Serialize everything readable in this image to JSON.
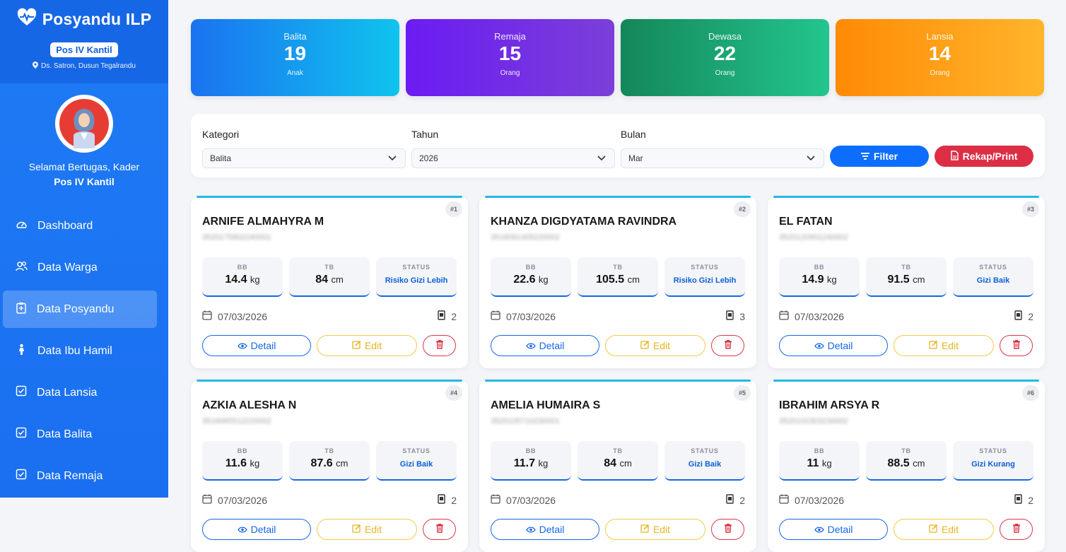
{
  "brand": {
    "title": "Posyandu ILP",
    "pos": "Pos IV Kantil",
    "address": "Ds. Satron, Dusun Tegalrandu"
  },
  "profile": {
    "greeting": "Selamat Bertugas, Kader",
    "pos": "Pos IV Kantil"
  },
  "nav": [
    {
      "label": "Dashboard",
      "icon": "dashboard-icon"
    },
    {
      "label": "Data Warga",
      "icon": "users-icon"
    },
    {
      "label": "Data Posyandu",
      "icon": "clipboard-icon",
      "active": true
    },
    {
      "label": "Data Ibu Hamil",
      "icon": "person-icon"
    },
    {
      "label": "Data Lansia",
      "icon": "check-square-icon"
    },
    {
      "label": "Data Balita",
      "icon": "check-square-icon"
    },
    {
      "label": "Data Remaja",
      "icon": "check-square-icon"
    }
  ],
  "stats": [
    {
      "label": "Balita",
      "value": "19",
      "unit": "Anak",
      "color_from": "#1a73f0",
      "color_to": "#10c3ee"
    },
    {
      "label": "Remaja",
      "value": "15",
      "unit": "Orang",
      "color_from": "#6b1cf2",
      "color_to": "#7b3fd8"
    },
    {
      "label": "Dewasa",
      "value": "22",
      "unit": "Orang",
      "color_from": "#14875a",
      "color_to": "#23c58e"
    },
    {
      "label": "Lansia",
      "value": "14",
      "unit": "Orang",
      "color_from": "#ff8a05",
      "color_to": "#ffb52b"
    }
  ],
  "filter": {
    "kategori_label": "Kategori",
    "kategori_value": "Balita",
    "tahun_label": "Tahun",
    "tahun_value": "2026",
    "bulan_label": "Bulan",
    "bulan_value": "Mar",
    "filter_button": "Filter",
    "print_button": "Rekap/Print"
  },
  "labels": {
    "bb": "BB",
    "tb": "TB",
    "status": "STATUS",
    "kg": "kg",
    "cm": "cm",
    "detail": "Detail",
    "edit": "Edit"
  },
  "cards": [
    {
      "num": "#1",
      "name": "ARNIFE ALMAHYRA M",
      "nik": "3520175802240001",
      "bb": "14.4",
      "tb": "84",
      "status": "Risiko Gizi Lebih",
      "date": "07/03/2026",
      "count": "2"
    },
    {
      "num": "#2",
      "name": "KHANZA DIGDYATAMA RAVINDRA",
      "nik": "3516091305220002",
      "bb": "22.6",
      "tb": "105.5",
      "status": "Risiko Gizi Lebih",
      "date": "07/03/2026",
      "count": "3"
    },
    {
      "num": "#3",
      "name": "EL FATAN",
      "nik": "3520120901240002",
      "bb": "14.9",
      "tb": "91.5",
      "status": "Gizi Baik",
      "date": "07/03/2026",
      "count": "2"
    },
    {
      "num": "#4",
      "name": "AZKIA ALESHA N",
      "nik": "3516065512220002",
      "bb": "11.6",
      "tb": "87.6",
      "status": "Gizi Baik",
      "date": "07/03/2026",
      "count": "2"
    },
    {
      "num": "#5",
      "name": "AMELIA HUMAIRA S",
      "nik": "3520105710230001",
      "bb": "11.7",
      "tb": "84",
      "status": "Gizi Baik",
      "date": "07/03/2026",
      "count": "2"
    },
    {
      "num": "#6",
      "name": "IBRAHIM ARSYA R",
      "nik": "3520102303230002",
      "bb": "11",
      "tb": "88.5",
      "status": "Gizi Kurang",
      "date": "07/03/2026",
      "count": "2"
    }
  ]
}
